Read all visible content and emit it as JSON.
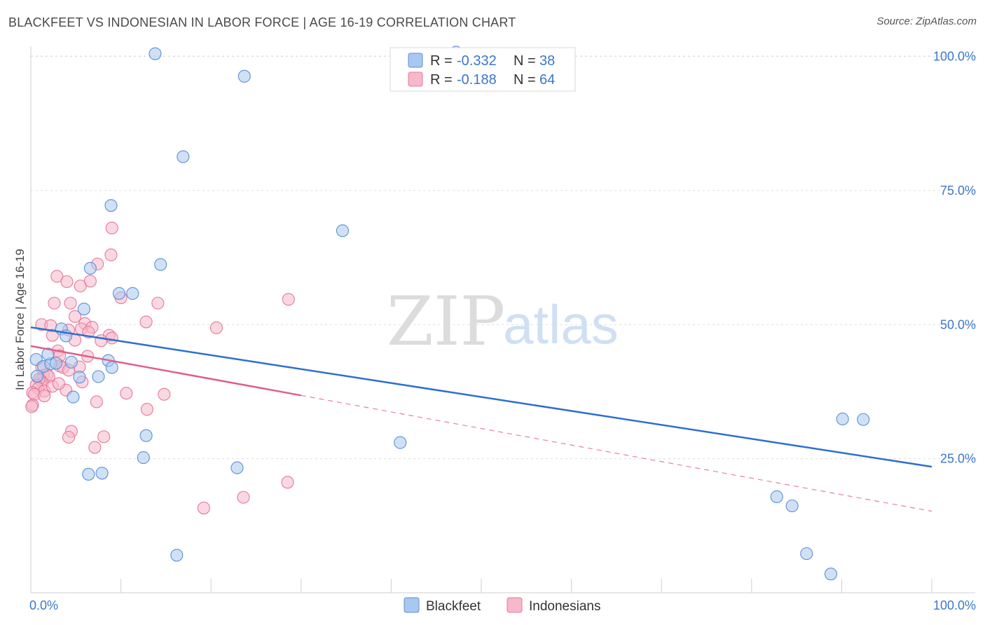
{
  "title": "BLACKFEET VS INDONESIAN IN LABOR FORCE | AGE 16-19 CORRELATION CHART",
  "source": "Source: ZipAtlas.com",
  "watermark": {
    "zip": "ZIP",
    "atlas": "atlas"
  },
  "colors": {
    "blue_fill": "#a9c8ef",
    "blue_stroke": "#5b8fd6",
    "blue_line": "#2d6fd0",
    "pink_fill": "#f6b8ca",
    "pink_stroke": "#e6789a",
    "pink_line": "#e0608a",
    "axis_text": "#3b78c9",
    "grid": "#dddddd"
  },
  "legend": {
    "blue": {
      "r_label": "R =",
      "r_value": "-0.332",
      "n_label": "N =",
      "n_value": "38"
    },
    "pink": {
      "r_label": "R =",
      "r_value": "-0.188",
      "n_label": "N =",
      "n_value": "64"
    }
  },
  "chart_data": {
    "type": "scatter",
    "title": "BLACKFEET VS INDONESIAN IN LABOR FORCE | AGE 16-19 CORRELATION CHART",
    "xlabel": "",
    "ylabel": "In Labor Force | Age 16-19",
    "xlim": [
      0,
      100
    ],
    "ylim": [
      0,
      105
    ],
    "x_tick_labels": [
      "0.0%",
      "100.0%"
    ],
    "y_ticks": [
      25,
      50,
      75,
      100
    ],
    "y_tick_labels": [
      "25.0%",
      "50.0%",
      "75.0%",
      "100.0%"
    ],
    "grid": true,
    "series": [
      {
        "name": "Blackfeet",
        "r": -0.332,
        "n": 38,
        "trend": {
          "x0": 0,
          "y0": 49.5,
          "x1": 100,
          "y1": 23.5
        },
        "points": [
          [
            13.8,
            100.5
          ],
          [
            23.7,
            96.3
          ],
          [
            16.9,
            81.3
          ],
          [
            8.9,
            72.2
          ],
          [
            34.6,
            67.5
          ],
          [
            14.4,
            61.2
          ],
          [
            6.6,
            60.5
          ],
          [
            9.8,
            55.8
          ],
          [
            11.3,
            55.8
          ],
          [
            5.9,
            52.9
          ],
          [
            3.4,
            49.2
          ],
          [
            3.9,
            47.9
          ],
          [
            0.6,
            43.5
          ],
          [
            1.4,
            42.2
          ],
          [
            2.2,
            42.7
          ],
          [
            2.8,
            42.8
          ],
          [
            4.5,
            43.0
          ],
          [
            8.6,
            43.3
          ],
          [
            9.0,
            42.0
          ],
          [
            5.4,
            40.2
          ],
          [
            7.5,
            40.3
          ],
          [
            4.7,
            36.5
          ],
          [
            0.7,
            40.4
          ],
          [
            12.8,
            29.3
          ],
          [
            41.0,
            28.0
          ],
          [
            12.5,
            25.2
          ],
          [
            22.9,
            23.3
          ],
          [
            6.4,
            22.1
          ],
          [
            7.9,
            22.3
          ],
          [
            16.2,
            7.0
          ],
          [
            90.1,
            32.4
          ],
          [
            92.4,
            32.3
          ],
          [
            82.8,
            17.9
          ],
          [
            84.5,
            16.2
          ],
          [
            86.1,
            7.3
          ],
          [
            88.8,
            3.5
          ],
          [
            47.2,
            100.8
          ],
          [
            1.9,
            44.5
          ]
        ]
      },
      {
        "name": "Indonesians",
        "r": -0.188,
        "n": 64,
        "trend": {
          "x0": 0,
          "y0": 46.0,
          "x1": 30,
          "y1": 36.8
        },
        "trend_dashed": {
          "x0": 30,
          "y0": 36.8,
          "x1": 100,
          "y1": 15.2
        },
        "points": [
          [
            9.0,
            68.0
          ],
          [
            8.9,
            63.0
          ],
          [
            7.4,
            61.3
          ],
          [
            2.9,
            59.0
          ],
          [
            4.0,
            58.0
          ],
          [
            6.6,
            58.1
          ],
          [
            5.5,
            57.2
          ],
          [
            10.0,
            55.0
          ],
          [
            2.6,
            54.0
          ],
          [
            4.4,
            54.0
          ],
          [
            14.1,
            54.0
          ],
          [
            28.6,
            54.7
          ],
          [
            4.9,
            51.5
          ],
          [
            6.0,
            50.2
          ],
          [
            12.8,
            50.5
          ],
          [
            1.2,
            50.0
          ],
          [
            2.2,
            49.8
          ],
          [
            4.2,
            49.0
          ],
          [
            5.6,
            49.2
          ],
          [
            6.8,
            49.5
          ],
          [
            20.6,
            49.4
          ],
          [
            2.4,
            48.0
          ],
          [
            6.4,
            48.6
          ],
          [
            8.7,
            48.0
          ],
          [
            9.0,
            47.5
          ],
          [
            4.9,
            47.1
          ],
          [
            3.0,
            45.1
          ],
          [
            3.2,
            44.2
          ],
          [
            6.3,
            44.1
          ],
          [
            1.2,
            42.0
          ],
          [
            3.2,
            42.3
          ],
          [
            3.6,
            42.0
          ],
          [
            5.4,
            42.1
          ],
          [
            4.2,
            41.5
          ],
          [
            1.4,
            40.5
          ],
          [
            1.8,
            40.7
          ],
          [
            2.0,
            40.3
          ],
          [
            1.1,
            39.6
          ],
          [
            1.3,
            39.1
          ],
          [
            0.9,
            39.8
          ],
          [
            5.7,
            39.3
          ],
          [
            0.6,
            38.7
          ],
          [
            0.8,
            38.1
          ],
          [
            1.5,
            37.6
          ],
          [
            2.4,
            38.5
          ],
          [
            0.2,
            37.3
          ],
          [
            0.4,
            37.0
          ],
          [
            3.9,
            37.8
          ],
          [
            10.6,
            37.2
          ],
          [
            14.8,
            37.0
          ],
          [
            1.5,
            36.7
          ],
          [
            7.3,
            35.6
          ],
          [
            12.9,
            34.2
          ],
          [
            0.2,
            35.0
          ],
          [
            0.1,
            34.7
          ],
          [
            4.5,
            30.1
          ],
          [
            4.2,
            29.0
          ],
          [
            8.1,
            29.1
          ],
          [
            7.1,
            27.1
          ],
          [
            28.5,
            20.6
          ],
          [
            23.6,
            17.8
          ],
          [
            19.2,
            15.8
          ],
          [
            7.8,
            47.0
          ],
          [
            3.1,
            39.0
          ]
        ]
      }
    ]
  },
  "bottom_legend": [
    {
      "label": "Blackfeet"
    },
    {
      "label": "Indonesians"
    }
  ]
}
